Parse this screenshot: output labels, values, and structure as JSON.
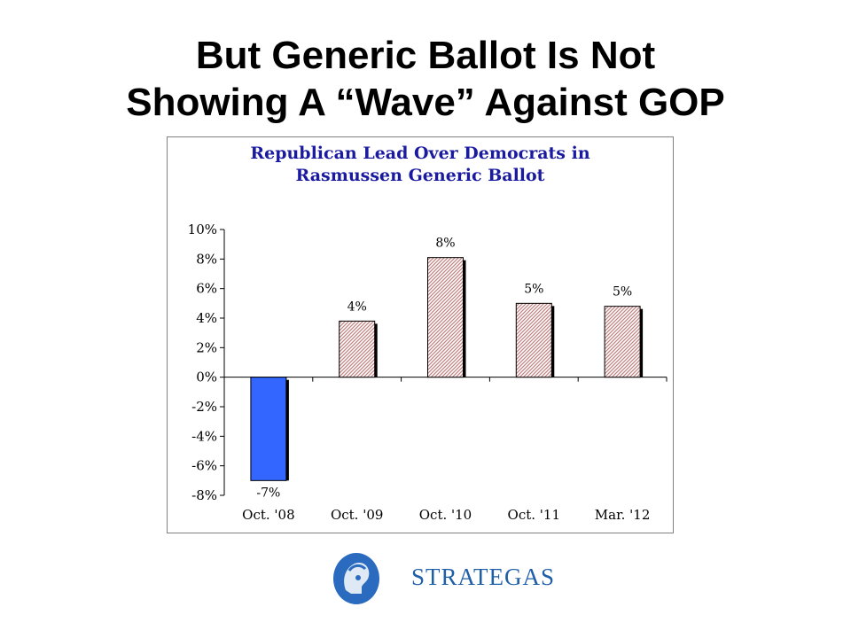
{
  "slide": {
    "title_line1": "But Generic Ballot Is Not",
    "title_line2": "Showing A “Wave” Against GOP"
  },
  "chart_data": {
    "type": "bar",
    "title_line1": "Republican Lead Over Democrats in",
    "title_line2": "Rasmussen Generic Ballot",
    "categories": [
      "Oct. '08",
      "Oct. '09",
      "Oct. '10",
      "Oct. '11",
      "Mar. '12"
    ],
    "values": [
      -7,
      3.8,
      8.1,
      5,
      4.8
    ],
    "data_labels": [
      "-7%",
      "4%",
      "8%",
      "5%",
      "5%"
    ],
    "yticks": [
      "10%",
      "8%",
      "6%",
      "4%",
      "2%",
      "0%",
      "-2%",
      "-4%",
      "-6%",
      "-8%"
    ],
    "ylim": [
      -8,
      10
    ],
    "xlabel": "",
    "ylabel": "",
    "grid": false,
    "legend": "none",
    "colors": {
      "negative_bar": "#3366ff",
      "positive_bar_hatch": "#c08080",
      "positive_bar_bg": "#ffffff",
      "title_text": "#1a1aa0",
      "shadow": "#000000"
    }
  },
  "logo": {
    "text": "STRATEGAS",
    "text_color": "#1f5fa8",
    "emblem_color": "#2a6bc0"
  }
}
